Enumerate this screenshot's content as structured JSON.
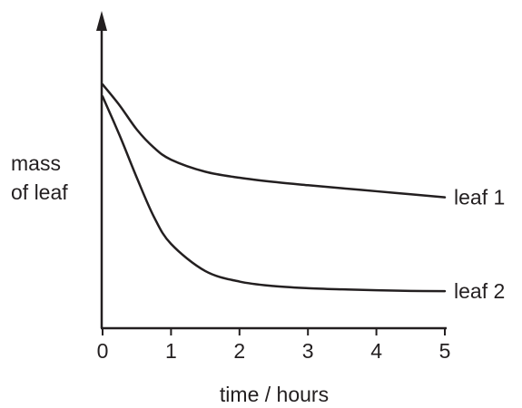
{
  "chart_data": {
    "type": "line",
    "xlabel": "time / hours",
    "ylabel_lines": [
      "mass",
      "of leaf"
    ],
    "ylabel": "mass of leaf",
    "xlim": [
      0,
      5
    ],
    "ylim": [
      0,
      1
    ],
    "x_ticks": [
      0,
      1,
      2,
      3,
      4,
      5
    ],
    "y_ticks": [],
    "grid": false,
    "legend": "none",
    "series": [
      {
        "name": "leaf 1",
        "x": [
          0,
          0.25,
          0.5,
          0.75,
          1,
          1.5,
          2,
          2.5,
          3,
          3.5,
          4,
          4.5,
          5
        ],
        "y": [
          0.81,
          0.74,
          0.66,
          0.6,
          0.56,
          0.52,
          0.5,
          0.486,
          0.475,
          0.465,
          0.455,
          0.445,
          0.435
        ]
      },
      {
        "name": "leaf 2",
        "x": [
          0,
          0.25,
          0.5,
          0.75,
          1,
          1.5,
          2,
          2.5,
          3,
          3.5,
          4,
          4.5,
          5
        ],
        "y": [
          0.77,
          0.64,
          0.5,
          0.37,
          0.28,
          0.19,
          0.155,
          0.14,
          0.133,
          0.129,
          0.126,
          0.124,
          0.123
        ]
      }
    ]
  }
}
